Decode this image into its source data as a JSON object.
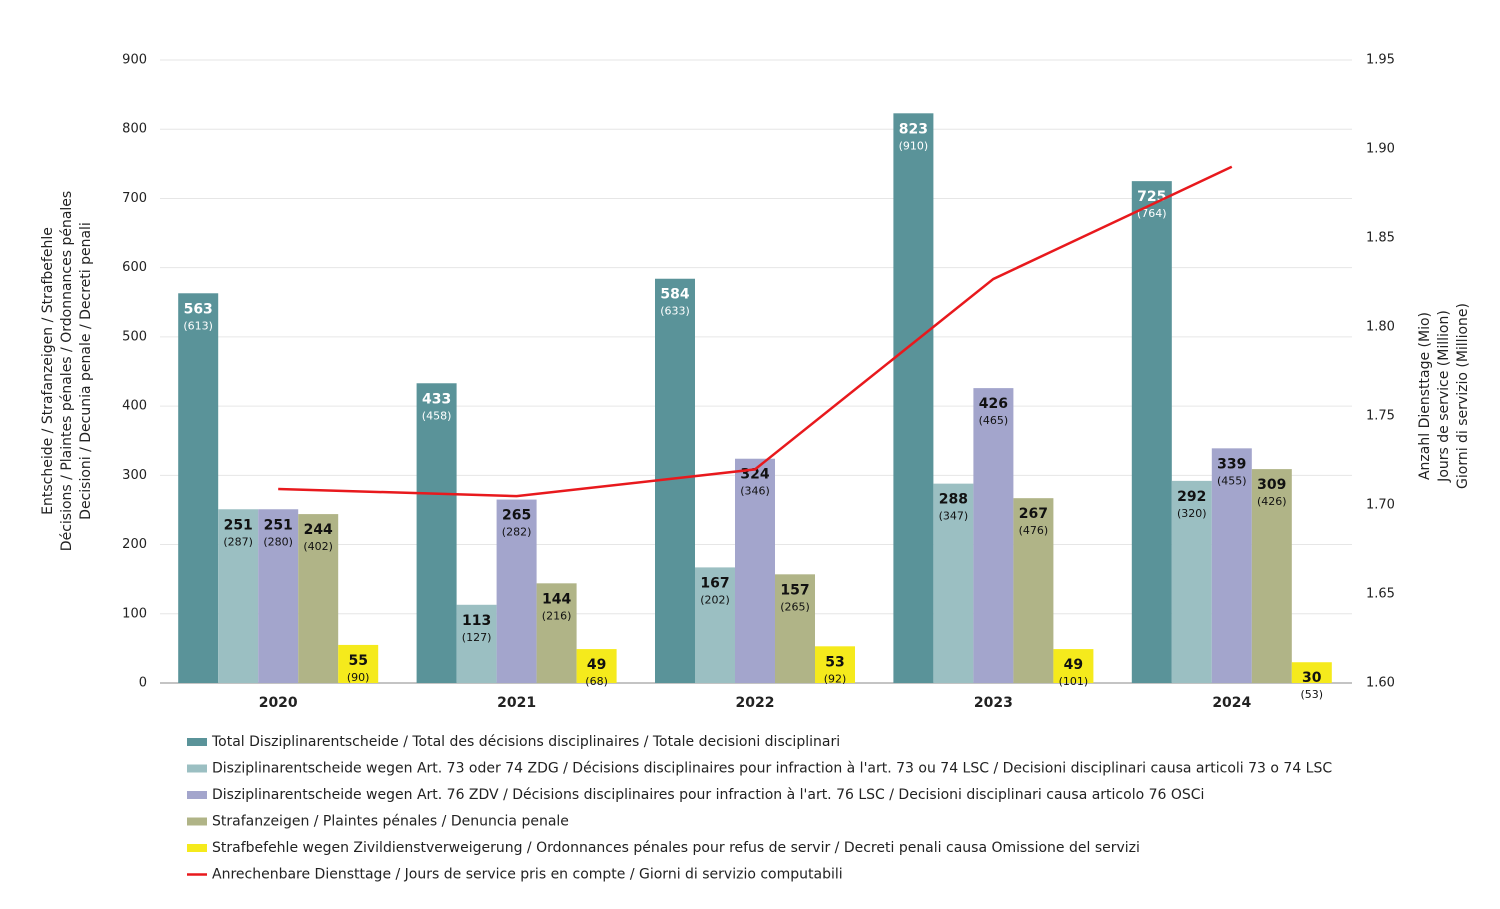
{
  "chart_data": {
    "type": "bar",
    "y_label": [
      "Entscheide / Strafanzeigen / Strafbefehle",
      "Décisions / Plaintes pénales / Ordonnances pénales",
      "Decisioni / Decunia penale / Decreti penali"
    ],
    "y2_label": [
      "Anzahl Diensttage (Mio)",
      "Jours de service (Million)",
      "Giorni di servizio (Millione)"
    ],
    "categories": [
      "2020",
      "2021",
      "2022",
      "2023",
      "2024"
    ],
    "series": [
      {
        "name": "Total Disziplinarentscheide / Total des décisions disciplinaires / Totale decisioni disciplinari",
        "color": "#5a9399",
        "label_color": "#ffffff",
        "values": [
          563,
          433,
          584,
          823,
          725
        ],
        "annotations": [
          "(613)",
          "(458)",
          "(633)",
          "(910)",
          "(764)"
        ]
      },
      {
        "name": "Disziplinarentscheide wegen Art. 73 oder 74 ZDG / Décisions disciplinaires pour infraction à l'art. 73 ou 74 LSC / Decisioni disciplinari causa articoli 73 o 74 LSC",
        "color": "#9bbfc2",
        "label_color": "#111111",
        "values": [
          251,
          113,
          167,
          288,
          292
        ],
        "annotations": [
          "(287)",
          "(127)",
          "(202)",
          "(347)",
          "(320)"
        ]
      },
      {
        "name": "Disziplinarentscheide wegen Art. 76 ZDV / Décisions disciplinaires pour infraction à l'art. 76 LSC / Decisioni disciplinari causa articolo 76 OSCi",
        "color": "#a3a5cc",
        "label_color": "#111111",
        "values": [
          251,
          265,
          324,
          426,
          339
        ],
        "annotations": [
          "(280)",
          "(282)",
          "(346)",
          "(465)",
          "(455)"
        ]
      },
      {
        "name": "Strafanzeigen / Plaintes pénales / Denuncia penale",
        "color": "#b0b487",
        "label_color": "#111111",
        "values": [
          244,
          144,
          157,
          267,
          309
        ],
        "annotations": [
          "(402)",
          "(216)",
          "(265)",
          "(476)",
          "(426)"
        ]
      },
      {
        "name": "Strafbefehle wegen Zivildienstverweigerung / Ordonnances pénales pour refus de servir / Decreti penali causa Omissione del servizi",
        "color": "#f5ea1c",
        "label_color": "#111111",
        "values": [
          55,
          49,
          53,
          49,
          30
        ],
        "annotations": [
          "(90)",
          "(68)",
          "(92)",
          "(101)",
          "(53)"
        ]
      },
      {
        "name": "Anrechenbare Diensttage / Jours de service pris en compte / Giorni di servizio computabili",
        "color": "#e8191d",
        "type": "line",
        "axis": "y2",
        "values": [
          1.709,
          1.705,
          1.72,
          1.827,
          1.89
        ]
      }
    ],
    "ylim": [
      0,
      900
    ],
    "yticks": [
      0,
      100,
      200,
      300,
      400,
      500,
      600,
      700,
      800,
      900
    ],
    "y2lim": [
      1.6,
      1.95
    ],
    "y2ticks": [
      {
        "value": 1.6,
        "label": "1.60"
      },
      1.65,
      {
        "value": 1.7,
        "label": "1.70"
      },
      1.75,
      {
        "value": 1.8,
        "label": "1.80"
      },
      1.85,
      {
        "value": 1.9,
        "label": "1.90"
      },
      1.95
    ],
    "grid": true
  }
}
